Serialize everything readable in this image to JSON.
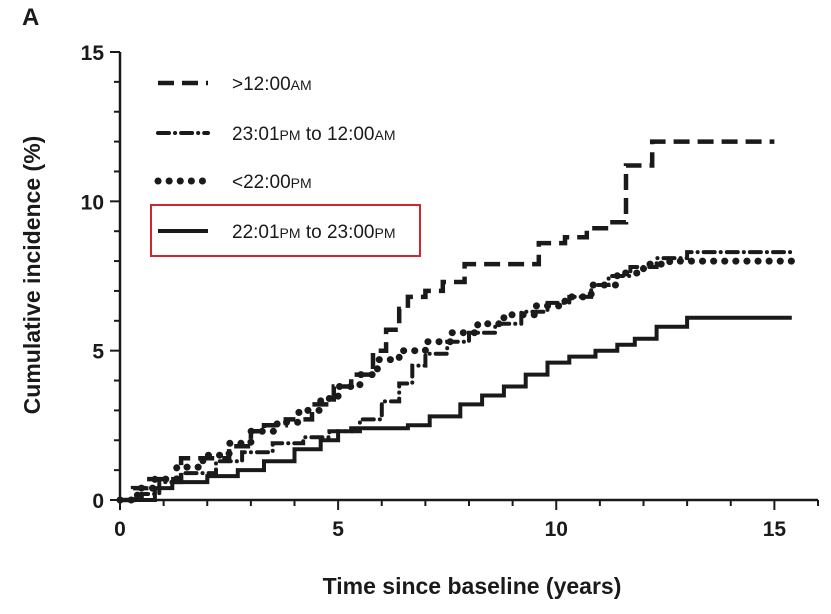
{
  "panel_label": "A",
  "chart_data": {
    "type": "line",
    "step": true,
    "xlabel": "Time since baseline (years)",
    "ylabel": "Cumulative incidence (%)",
    "xlim": [
      0,
      16
    ],
    "ylim": [
      0,
      15
    ],
    "xticks": [
      0,
      5,
      10,
      15
    ],
    "yticks": [
      0,
      5,
      10,
      15
    ],
    "grid": false,
    "legend_position": "top-left",
    "legend_highlight": "22:01PM to 23:00PM",
    "series": [
      {
        "name": ">12:00AM",
        "legend_parts": [
          [
            ">12:00",
            false
          ],
          [
            "AM",
            true
          ]
        ],
        "style": "dashed",
        "x": [
          0,
          0.3,
          0.6,
          1.4,
          2.5,
          3.0,
          3.3,
          3.8,
          4.4,
          4.9,
          5.3,
          5.8,
          6.1,
          6.4,
          6.6,
          7.0,
          7.4,
          7.9,
          9.0,
          9.6,
          10.2,
          10.7,
          11.2,
          11.6,
          12.2,
          15.0
        ],
        "y": [
          0,
          0.4,
          0.7,
          1.4,
          1.8,
          2.3,
          2.5,
          2.7,
          3.2,
          3.8,
          4.2,
          5.0,
          5.7,
          6.4,
          6.8,
          7.0,
          7.3,
          7.9,
          7.9,
          8.6,
          8.8,
          9.1,
          9.3,
          11.2,
          12.0,
          12.0
        ]
      },
      {
        "name": "23:01PM to 12:00AM",
        "legend_parts": [
          [
            "23:01",
            false
          ],
          [
            "PM",
            true
          ],
          [
            " to 12:00",
            false
          ],
          [
            "AM",
            true
          ]
        ],
        "style": "dash-dot",
        "x": [
          0,
          0.5,
          0.9,
          1.4,
          2.2,
          2.8,
          3.5,
          4.2,
          4.8,
          5.5,
          6.0,
          6.4,
          6.7,
          7.0,
          7.5,
          8.0,
          8.6,
          9.2,
          9.8,
          10.3,
          10.8,
          11.2,
          11.7,
          12.3,
          13.0,
          15.4
        ],
        "y": [
          0,
          0.2,
          0.6,
          0.9,
          1.3,
          1.6,
          1.9,
          2.1,
          2.3,
          2.7,
          3.3,
          3.9,
          4.5,
          4.9,
          5.3,
          5.6,
          5.9,
          6.3,
          6.6,
          6.8,
          7.2,
          7.5,
          7.8,
          8.1,
          8.3,
          8.3
        ]
      },
      {
        "name": "<22:00PM",
        "legend_parts": [
          [
            "<22:00",
            false
          ],
          [
            "PM",
            true
          ]
        ],
        "style": "dotted",
        "x": [
          0,
          0.4,
          0.8,
          1.3,
          1.9,
          2.5,
          3.0,
          3.6,
          4.1,
          4.6,
          5.0,
          5.5,
          5.9,
          6.4,
          7.0,
          7.6,
          8.2,
          8.8,
          9.5,
          10.2,
          10.8,
          11.4,
          12.0,
          12.6,
          13.2,
          15.4
        ],
        "y": [
          0,
          0.4,
          0.7,
          1.1,
          1.5,
          1.9,
          2.3,
          2.6,
          3.0,
          3.4,
          3.8,
          4.2,
          4.7,
          5.0,
          5.3,
          5.6,
          5.9,
          6.2,
          6.5,
          6.8,
          7.2,
          7.6,
          7.9,
          8.0,
          8.0,
          8.0
        ]
      },
      {
        "name": "22:01PM to 23:00PM",
        "legend_parts": [
          [
            "22:01",
            false
          ],
          [
            "PM",
            true
          ],
          [
            " to 23:00",
            false
          ],
          [
            "PM",
            true
          ]
        ],
        "style": "solid",
        "x": [
          0,
          0.8,
          1.2,
          2.0,
          2.7,
          3.3,
          4.0,
          4.6,
          5.0,
          5.3,
          6.6,
          7.1,
          7.8,
          8.3,
          8.8,
          9.3,
          9.8,
          10.3,
          10.9,
          11.4,
          11.8,
          12.3,
          13.0,
          15.4
        ],
        "y": [
          0,
          0.4,
          0.6,
          0.8,
          1.0,
          1.3,
          1.7,
          2.0,
          2.3,
          2.4,
          2.5,
          2.8,
          3.2,
          3.5,
          3.8,
          4.2,
          4.6,
          4.8,
          5.0,
          5.2,
          5.4,
          5.8,
          6.1,
          6.1
        ]
      }
    ]
  }
}
